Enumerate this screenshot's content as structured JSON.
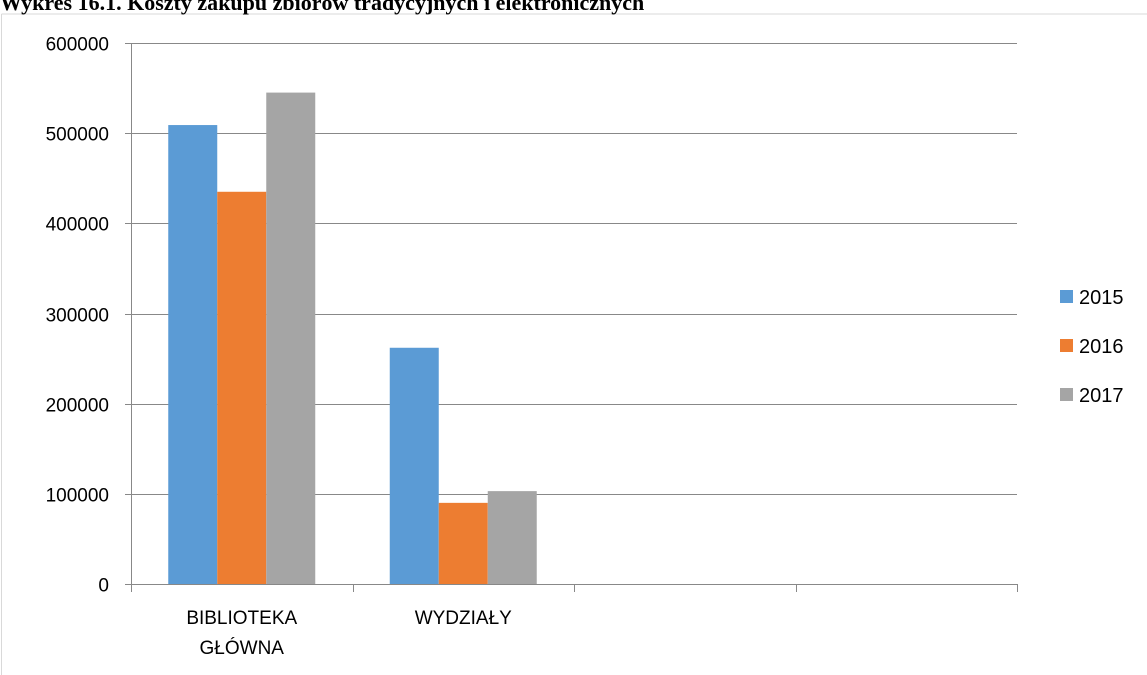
{
  "chart_data": {
    "type": "bar",
    "title": "Wykres 16.1. Koszty zakupu zbiorów tradycyjnych i elektronicznych",
    "xlabel": "",
    "ylabel": "",
    "categories": [
      "BIBLIOTEKA\nGŁÓWNA",
      "WYDZIAŁY",
      "",
      ""
    ],
    "series": [
      {
        "name": "2015",
        "color": "#5B9BD5",
        "values": [
          509000,
          262000,
          null,
          null
        ]
      },
      {
        "name": "2016",
        "color": "#ED7D31",
        "values": [
          435000,
          90000,
          null,
          null
        ]
      },
      {
        "name": "2017",
        "color": "#A5A5A5",
        "values": [
          545000,
          103000,
          null,
          null
        ]
      }
    ],
    "ylim": [
      0,
      600000
    ],
    "yticks": [
      0,
      100000,
      200000,
      300000,
      400000,
      500000,
      600000
    ],
    "grid": true,
    "legend_position": "right"
  }
}
